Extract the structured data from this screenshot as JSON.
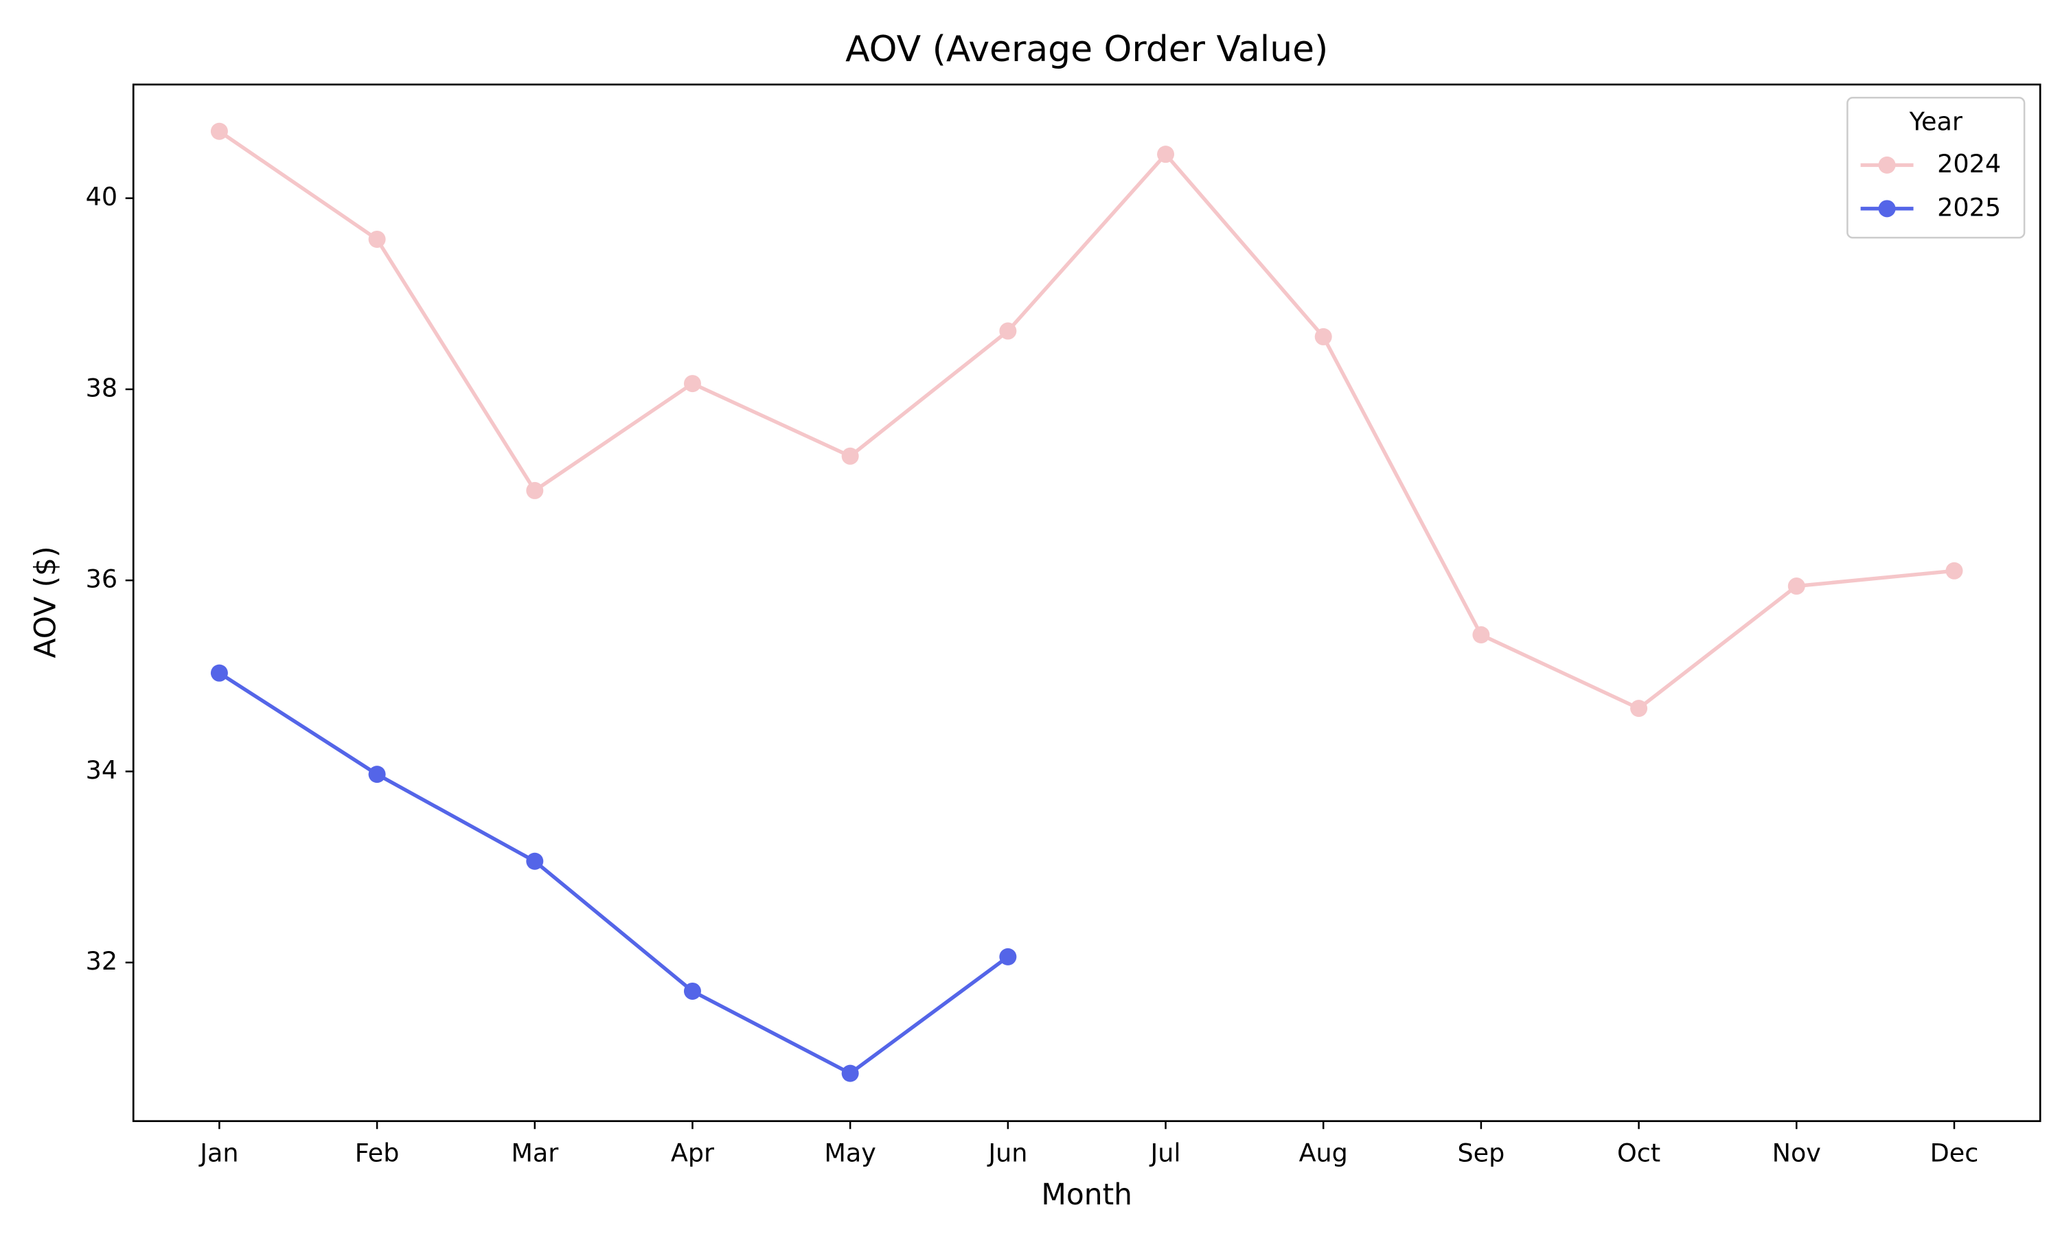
{
  "chart_data": {
    "type": "line",
    "title": "AOV (Average Order Value)",
    "x_label": "Month",
    "y_label": "AOV ($)",
    "legend_title": "Year",
    "legend_position": "upper right",
    "categories": [
      "Jan",
      "Feb",
      "Mar",
      "Apr",
      "May",
      "Jun",
      "Jul",
      "Aug",
      "Sep",
      "Oct",
      "Nov",
      "Dec"
    ],
    "series": [
      {
        "name": "2024",
        "color": "#f5c6c9",
        "values": [
          40.7,
          39.57,
          36.94,
          38.06,
          37.3,
          38.61,
          40.46,
          38.55,
          35.43,
          34.66,
          35.94,
          36.1
        ]
      },
      {
        "name": "2025",
        "color": "#5465e8",
        "values": [
          35.03,
          33.97,
          33.06,
          31.7,
          30.84,
          32.06,
          null,
          null,
          null,
          null,
          null,
          null
        ]
      }
    ],
    "ylim": [
      30.34,
      41.19
    ],
    "yticks": [
      32,
      34,
      36,
      38,
      40
    ],
    "grid": false
  }
}
